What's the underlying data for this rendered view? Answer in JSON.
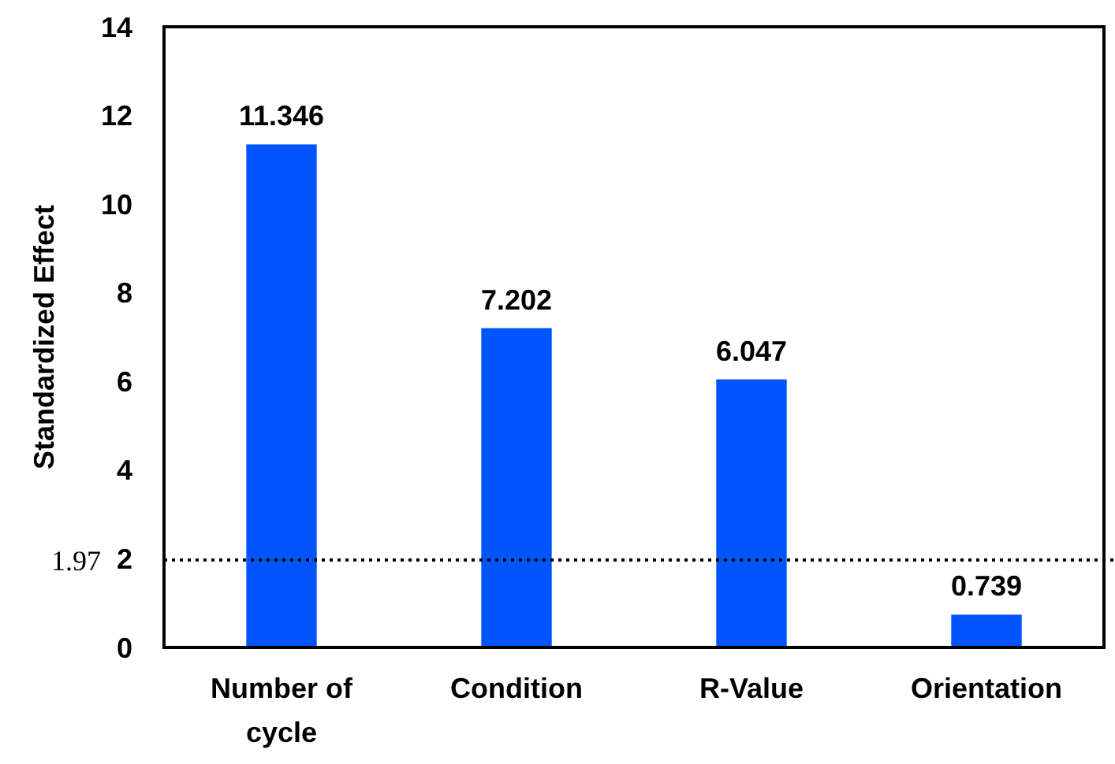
{
  "chart_data": {
    "type": "bar",
    "ylabel": "Standardized Effect",
    "categories": [
      "Number of cycle",
      "Condition",
      "R-Value",
      "Orientation"
    ],
    "values": [
      11.346,
      7.202,
      6.047,
      0.739
    ],
    "color": "#0055ff",
    "ylim": [
      0,
      14
    ],
    "yticks": [
      0,
      2,
      4,
      6,
      8,
      10,
      12,
      14
    ],
    "data_labels": true,
    "grid": false,
    "ref_lines": [
      {
        "axis": "y",
        "value": 1.97,
        "label": "1.97",
        "line_style": "dotted",
        "color": "#000000"
      }
    ]
  }
}
